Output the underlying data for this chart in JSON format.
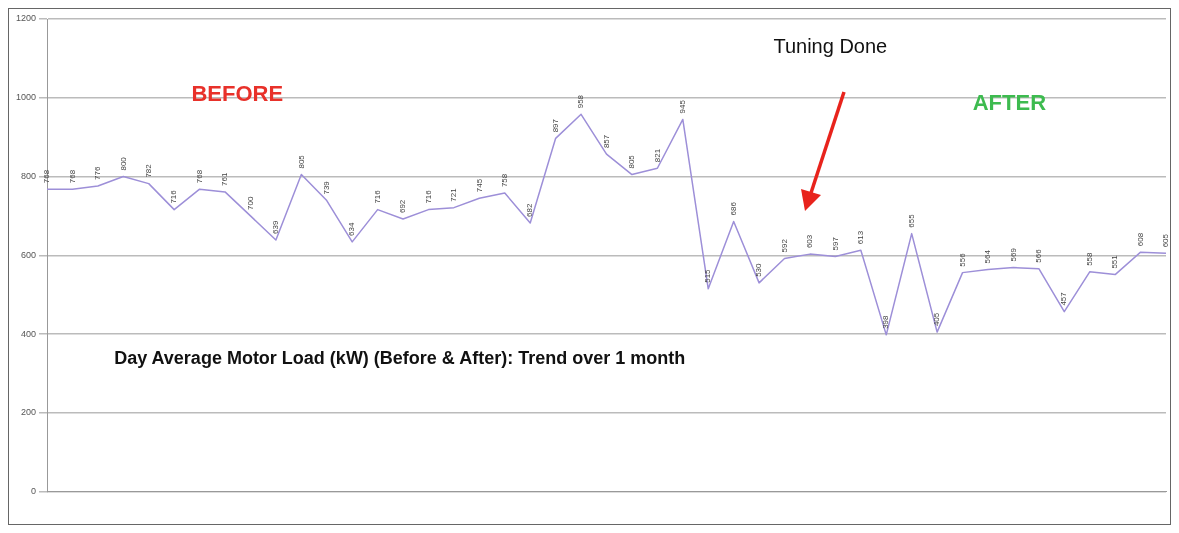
{
  "chart_data": {
    "type": "line",
    "annotations": [
      "BEFORE",
      "AFTER",
      "Tuning Done",
      "Day Average Motor Load (kW) (Before & After): Trend over 1 month"
    ],
    "categories": [
      null,
      null,
      null,
      null,
      null,
      null,
      null,
      null,
      null,
      null,
      null,
      null,
      null,
      null,
      null,
      null,
      null,
      null,
      null,
      null,
      null,
      null,
      null,
      null,
      null,
      null,
      null,
      null,
      null,
      null,
      null,
      null,
      null,
      null,
      null,
      null,
      null,
      null,
      null,
      null,
      null,
      null,
      null,
      null,
      null
    ],
    "series": [
      {
        "color": "#9d8fd8",
        "values": [
          768,
          768,
          776,
          800,
          782,
          716,
          768,
          761,
          700,
          639,
          805,
          739,
          634,
          716,
          692,
          716,
          721,
          745,
          758,
          682,
          897,
          958,
          857,
          805,
          821,
          945,
          515,
          686,
          530,
          592,
          603,
          597,
          613,
          398,
          655,
          405,
          556,
          564,
          569,
          566,
          457,
          558,
          551,
          608,
          605
        ]
      }
    ],
    "ylim": [
      0,
      1200
    ],
    "yticks": [
      0,
      200,
      400,
      600,
      800,
      1000,
      1200
    ],
    "grid": "y",
    "marker": "none",
    "line_style": "solid",
    "data_labels": true,
    "legend": false
  }
}
